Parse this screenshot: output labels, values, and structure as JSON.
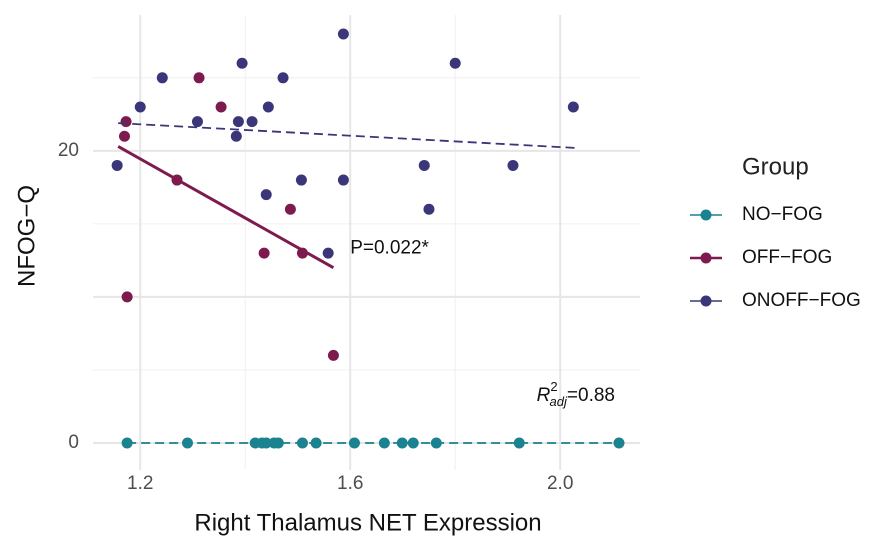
{
  "chart_data": {
    "type": "scatter",
    "x_label": "Right Thalamus NET Expression",
    "y_label": "NFOG−Q",
    "legend_title": "Group",
    "xlim": [
      1.11,
      2.152
    ],
    "ylim": [
      -1.85,
      29.3
    ],
    "xticks": [
      1.2,
      1.6,
      {
        "value": 2,
        "label": "2.0"
      }
    ],
    "xgrid_minor": [
      1.4,
      1.8
    ],
    "yticks": [
      0,
      20
    ],
    "ygrid_major": [
      0,
      10,
      20
    ],
    "ygrid_minor": [
      5,
      15,
      25
    ],
    "grid": true,
    "series": [
      {
        "name": "NO−FOG",
        "color": "#1b8290",
        "x": [
          1.175,
          1.29,
          1.419,
          1.432,
          1.44,
          1.455,
          1.463,
          1.509,
          1.535,
          1.608,
          1.665,
          1.699,
          1.72,
          1.764,
          1.922,
          2.112
        ],
        "values": [
          0,
          0,
          0,
          0,
          0,
          0,
          0,
          0,
          0,
          0,
          0,
          0,
          0,
          0,
          0,
          0
        ],
        "fit": {
          "x": [
            1.175,
            2.112
          ],
          "values": [
            0,
            0
          ],
          "dash": true
        }
      },
      {
        "name": "OFF−FOG",
        "color": "#7d1b4f",
        "x": [
          1.173,
          1.17,
          1.312,
          1.354,
          1.27,
          1.486,
          1.436,
          1.509,
          1.175,
          1.568
        ],
        "values": [
          22,
          21,
          25,
          23,
          18,
          16,
          13,
          13,
          10,
          6
        ],
        "fit": {
          "x": [
            1.158,
            1.568
          ],
          "values": [
            20.3,
            12
          ],
          "dash": false
        }
      },
      {
        "name": "ONOFF−FOG",
        "color": "#3a3679",
        "x": [
          1.587,
          1.242,
          1.394,
          1.472,
          1.8,
          1.2,
          1.444,
          2.025,
          1.309,
          1.387,
          1.413,
          1.383,
          1.156,
          1.741,
          1.91,
          1.507,
          1.587,
          1.44,
          1.75,
          1.558
        ],
        "values": [
          28,
          25,
          26,
          25,
          26,
          23,
          23,
          23,
          22,
          22,
          22,
          21,
          19,
          19,
          19,
          18,
          18,
          17,
          16,
          13
        ],
        "fit": {
          "x": [
            1.158,
            2.029
          ],
          "values": [
            21.9,
            20.2
          ],
          "dash": true
        }
      }
    ],
    "annotations": [
      {
        "text": "P=0.022*",
        "x": 1.6,
        "y": 13.3
      },
      {
        "parts": [
          "R",
          "2",
          "adj",
          "=0.88"
        ],
        "x": 1.955,
        "y": 3.2
      }
    ]
  }
}
